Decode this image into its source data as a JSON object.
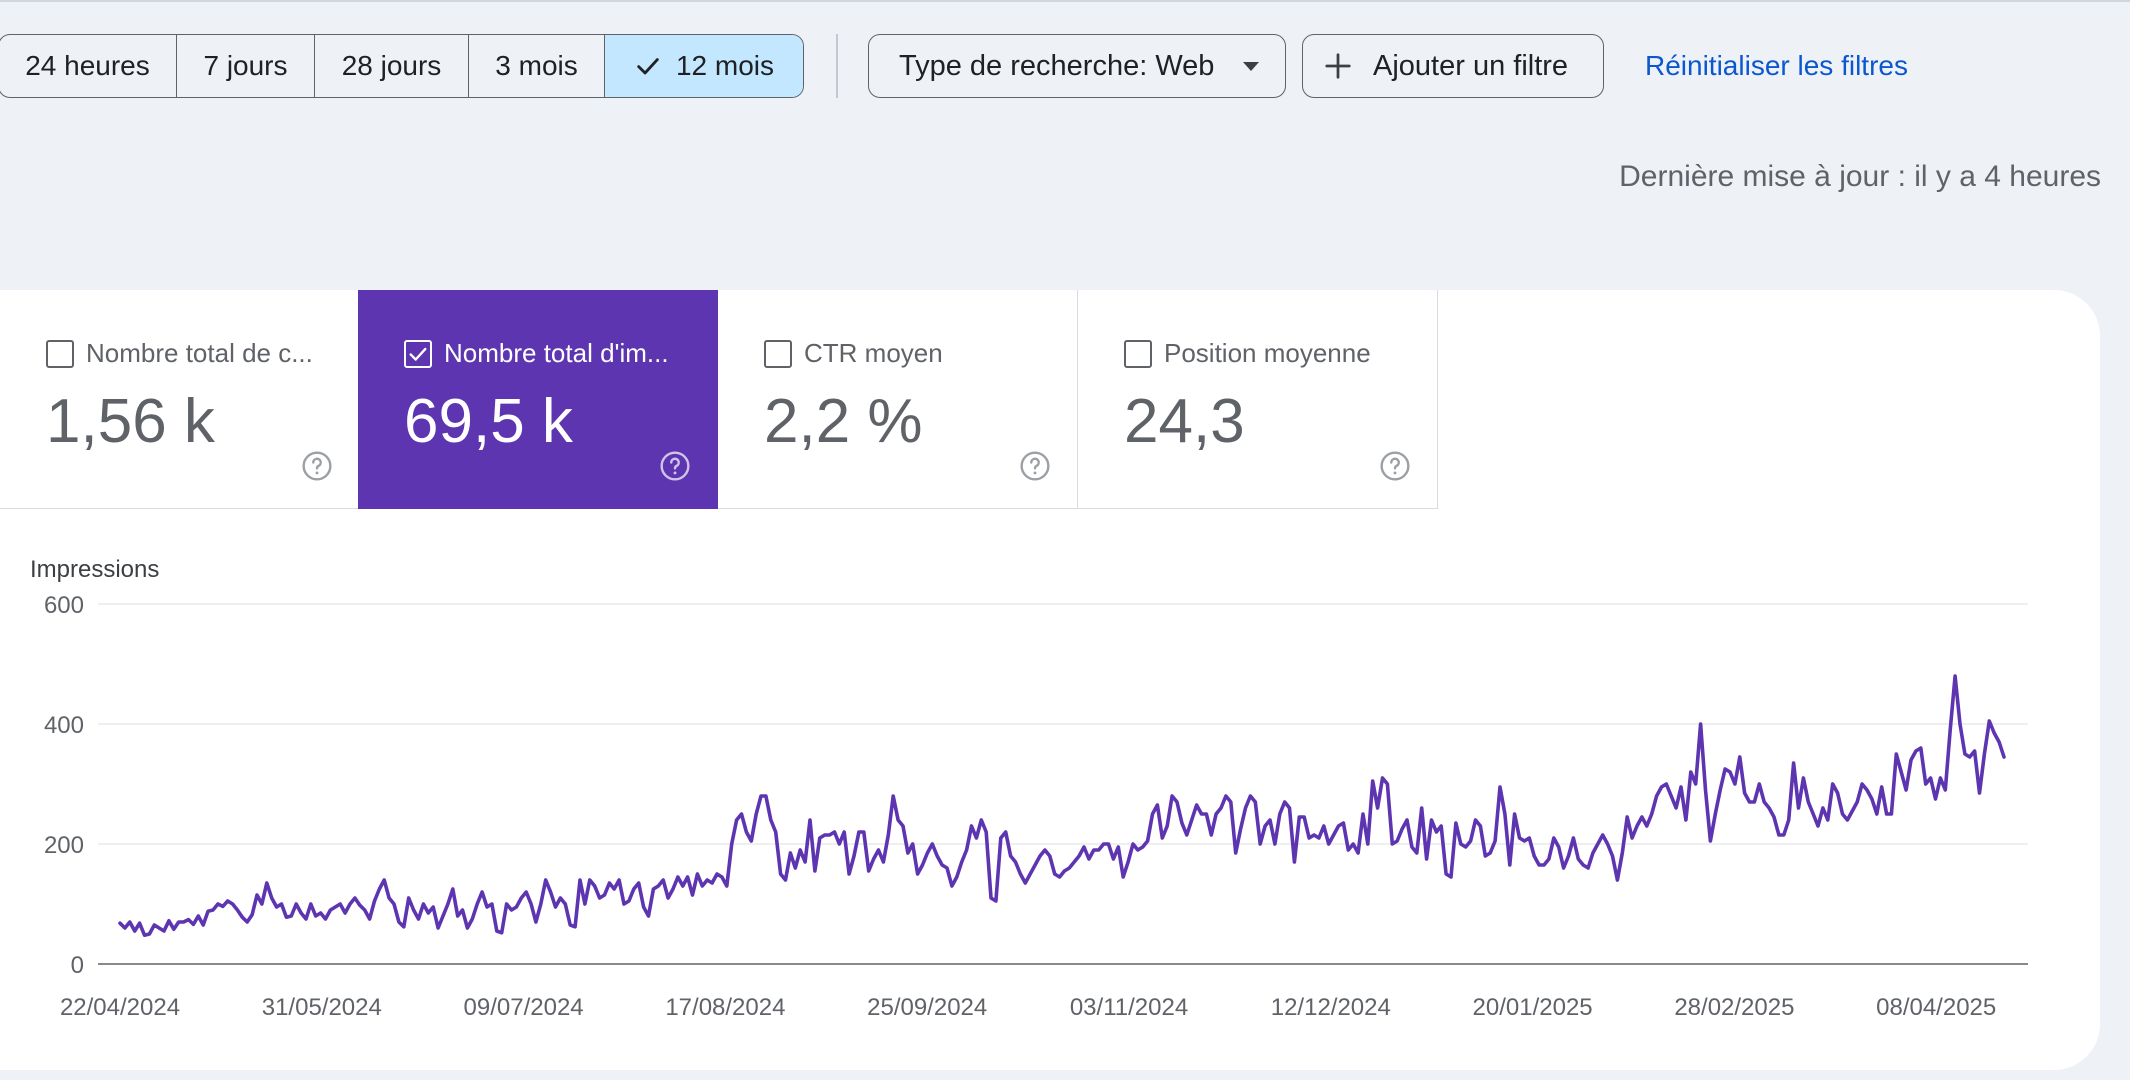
{
  "date_range": {
    "options": [
      {
        "label": "24 heures",
        "active": false
      },
      {
        "label": "7 jours",
        "active": false
      },
      {
        "label": "28 jours",
        "active": false
      },
      {
        "label": "3 mois",
        "active": false
      },
      {
        "label": "12 mois",
        "active": true
      }
    ]
  },
  "filters": {
    "search_type": "Type de recherche: Web",
    "add_filter": "Ajouter un filtre",
    "reset": "Réinitialiser les filtres"
  },
  "last_updated": "Dernière mise à jour : il y a 4 heures",
  "metrics": [
    {
      "label": "Nombre total de c...",
      "value": "1,56 k",
      "checked": false
    },
    {
      "label": "Nombre total d'im...",
      "value": "69,5 k",
      "checked": true
    },
    {
      "label": "CTR moyen",
      "value": "2,2 %",
      "checked": false
    },
    {
      "label": "Position moyenne",
      "value": "24,3",
      "checked": false
    }
  ],
  "colors": {
    "accent": "#5e35b1",
    "selected_range": "#c2e7ff",
    "link": "#0b57d0"
  },
  "icons": [
    "check-icon",
    "dropdown-caret-icon",
    "plus-icon",
    "checkbox-icon",
    "help-icon"
  ],
  "chart_data": {
    "type": "line",
    "ylabel": "Impressions",
    "ylim": [
      0,
      600
    ],
    "yticks": [
      0,
      200,
      400,
      600
    ],
    "xticks": [
      "22/04/2024",
      "31/05/2024",
      "09/07/2024",
      "17/08/2024",
      "25/09/2024",
      "03/11/2024",
      "12/12/2024",
      "20/01/2025",
      "28/02/2025",
      "08/04/2025"
    ],
    "x_start": "22/04/2024",
    "x_interval": "1 day",
    "grid": true,
    "series": [
      {
        "color": "#5e35b1",
        "values": [
          68,
          60,
          70,
          55,
          68,
          48,
          50,
          65,
          60,
          55,
          72,
          58,
          70,
          70,
          74,
          66,
          80,
          65,
          88,
          90,
          100,
          96,
          105,
          100,
          90,
          78,
          70,
          82,
          115,
          100,
          135,
          110,
          95,
          100,
          78,
          80,
          100,
          85,
          75,
          100,
          80,
          85,
          75,
          90,
          95,
          100,
          85,
          100,
          110,
          98,
          90,
          75,
          105,
          125,
          140,
          110,
          100,
          70,
          62,
          110,
          90,
          75,
          100,
          85,
          95,
          60,
          80,
          100,
          125,
          80,
          90,
          60,
          75,
          100,
          120,
          95,
          100,
          55,
          52,
          100,
          90,
          95,
          110,
          120,
          100,
          70,
          100,
          140,
          120,
          95,
          110,
          100,
          65,
          62,
          140,
          100,
          140,
          130,
          110,
          115,
          135,
          125,
          140,
          100,
          105,
          125,
          135,
          95,
          80,
          125,
          130,
          140,
          110,
          125,
          145,
          130,
          145,
          115,
          150,
          130,
          140,
          135,
          150,
          145,
          130,
          200,
          240,
          250,
          220,
          205,
          250,
          280,
          280,
          240,
          220,
          150,
          140,
          185,
          160,
          190,
          170,
          240,
          155,
          210,
          215,
          215,
          220,
          200,
          220,
          150,
          180,
          220,
          220,
          155,
          175,
          190,
          170,
          215,
          280,
          240,
          230,
          185,
          200,
          150,
          165,
          185,
          200,
          180,
          165,
          160,
          130,
          145,
          170,
          190,
          230,
          210,
          240,
          220,
          110,
          105,
          210,
          220,
          180,
          170,
          150,
          135,
          150,
          165,
          180,
          190,
          180,
          150,
          145,
          155,
          160,
          170,
          180,
          195,
          175,
          190,
          190,
          200,
          200,
          175,
          195,
          145,
          170,
          200,
          190,
          195,
          205,
          250,
          265,
          210,
          230,
          280,
          270,
          235,
          215,
          240,
          265,
          250,
          250,
          215,
          250,
          260,
          280,
          270,
          185,
          225,
          260,
          280,
          270,
          200,
          230,
          240,
          200,
          250,
          270,
          260,
          170,
          245,
          245,
          210,
          215,
          210,
          230,
          200,
          215,
          230,
          235,
          190,
          200,
          185,
          250,
          200,
          305,
          260,
          310,
          300,
          200,
          205,
          225,
          240,
          195,
          185,
          260,
          175,
          240,
          220,
          230,
          150,
          145,
          235,
          200,
          195,
          205,
          240,
          230,
          180,
          185,
          205,
          295,
          250,
          165,
          250,
          210,
          205,
          210,
          180,
          165,
          165,
          175,
          210,
          195,
          160,
          180,
          210,
          175,
          165,
          160,
          185,
          200,
          215,
          200,
          180,
          140,
          185,
          245,
          210,
          230,
          245,
          230,
          250,
          280,
          295,
          300,
          280,
          260,
          295,
          240,
          320,
          300,
          400,
          290,
          205,
          250,
          290,
          325,
          320,
          300,
          345,
          285,
          270,
          270,
          300,
          270,
          260,
          245,
          215,
          215,
          240,
          335,
          260,
          310,
          270,
          250,
          230,
          260,
          240,
          300,
          285,
          250,
          240,
          255,
          270,
          300,
          290,
          275,
          250,
          295,
          250,
          250,
          350,
          320,
          290,
          340,
          355,
          360,
          300,
          310,
          275,
          310,
          290,
          390,
          480,
          400,
          350,
          345,
          355,
          285,
          350,
          405,
          385,
          370,
          345
        ]
      }
    ]
  }
}
